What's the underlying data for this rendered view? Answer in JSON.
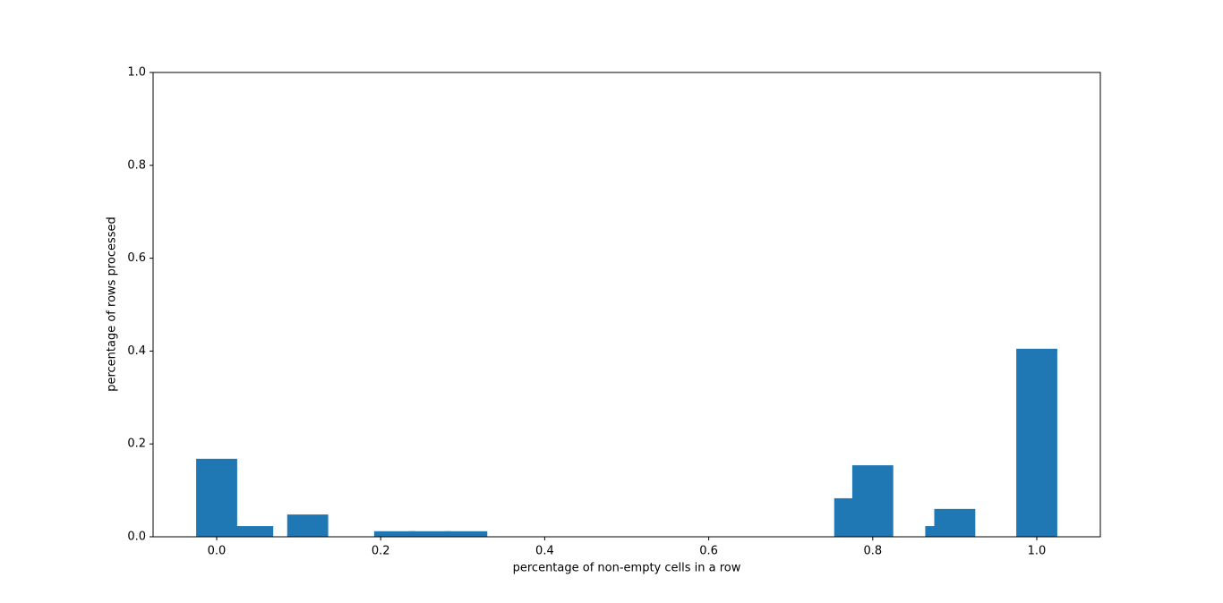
{
  "chart_data": {
    "type": "bar",
    "xlabel": "percentage of non-empty cells in a row",
    "ylabel": "percentage of rows processed",
    "x": [
      0.044,
      0.0,
      0.111,
      0.217,
      0.26,
      0.305,
      0.778,
      0.8,
      0.889,
      0.9,
      1.0
    ],
    "values": [
      0.023,
      0.168,
      0.048,
      0.012,
      0.012,
      0.012,
      0.083,
      0.154,
      0.023,
      0.06,
      0.405
    ],
    "bar_width": 0.05,
    "color": "#1f77b4",
    "xlim": [
      -0.0775,
      1.0775
    ],
    "ylim": [
      0,
      1.0
    ],
    "xticks": [
      {
        "value": 0,
        "label": "0.0"
      },
      {
        "value": 0.2,
        "label": "0.2"
      },
      {
        "value": 0.4,
        "label": "0.4"
      },
      {
        "value": 0.6,
        "label": "0.6"
      },
      {
        "value": 0.8,
        "label": "0.8"
      },
      {
        "value": 1,
        "label": "1.0"
      }
    ],
    "yticks": [
      {
        "value": 0,
        "label": "0.0"
      },
      {
        "value": 0.2,
        "label": "0.2"
      },
      {
        "value": 0.4,
        "label": "0.4"
      },
      {
        "value": 0.6,
        "label": "0.6"
      },
      {
        "value": 0.8,
        "label": "0.8"
      },
      {
        "value": 1,
        "label": "1.0"
      }
    ],
    "grid": false
  }
}
